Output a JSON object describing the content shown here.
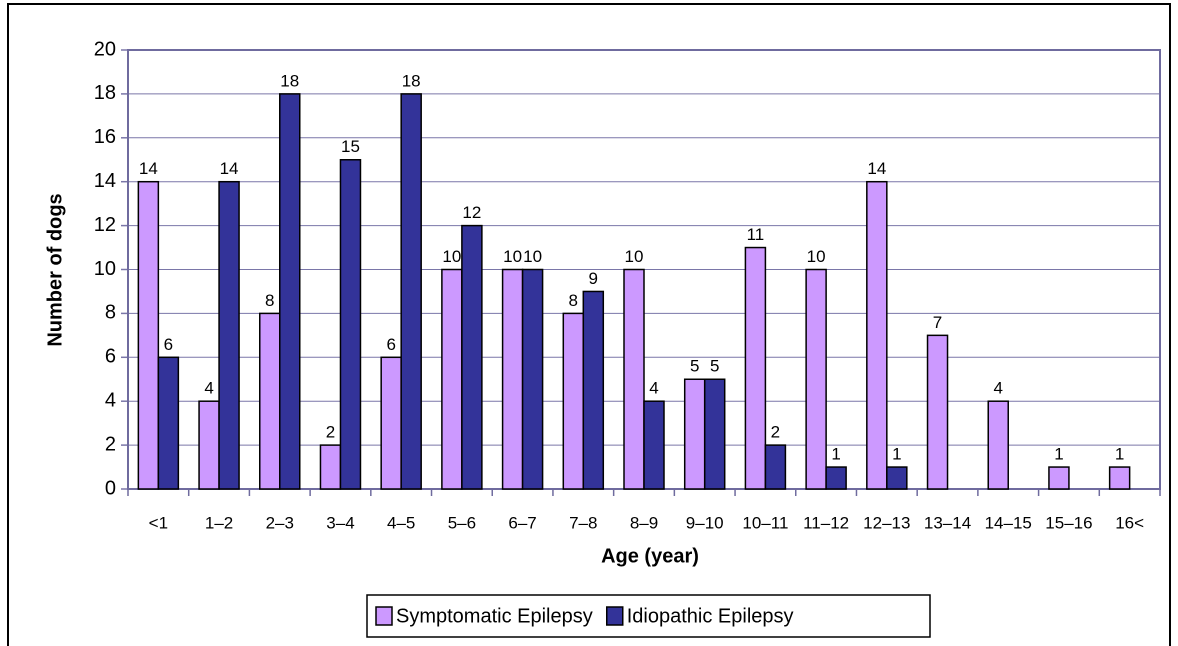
{
  "chart_data": {
    "type": "bar",
    "x_label": "Age (year)",
    "y_label": "Number of dogs",
    "categories": [
      "<1",
      "1–2",
      "2–3",
      "3–4",
      "4–5",
      "5–6",
      "6–7",
      "7–8",
      "8–9",
      "9–10",
      "10–11",
      "11–12",
      "12–13",
      "13–14",
      "14–15",
      "15–16",
      "16<"
    ],
    "series": [
      {
        "name": "Symptomatic Epilepsy",
        "color": "#cc99ff",
        "values": [
          14,
          4,
          8,
          2,
          6,
          10,
          10,
          8,
          10,
          5,
          11,
          10,
          14,
          7,
          4,
          1,
          1
        ]
      },
      {
        "name": "Idiopathic Epilepsy",
        "color": "#333399",
        "values": [
          6,
          14,
          18,
          15,
          18,
          12,
          10,
          9,
          4,
          5,
          2,
          1,
          1,
          0,
          0,
          0,
          0
        ]
      }
    ],
    "ylim": [
      0,
      20
    ],
    "yticks": [
      0,
      2,
      4,
      6,
      8,
      10,
      12,
      14,
      16,
      18,
      20
    ],
    "grid": true,
    "legend": "bottom"
  }
}
